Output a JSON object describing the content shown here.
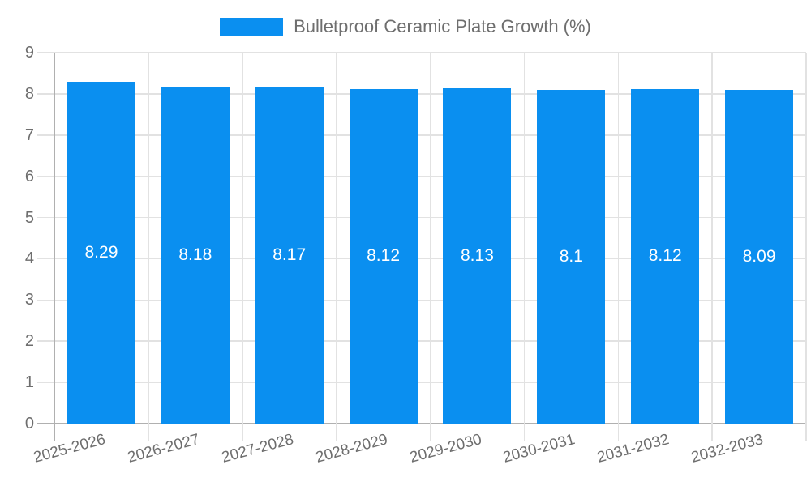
{
  "legend": {
    "label": "Bulletproof Ceramic Plate Growth (%)"
  },
  "chart_data": {
    "type": "bar",
    "title": "Bulletproof Ceramic Plate Growth (%)",
    "legend_entries": [
      "Bulletproof Ceramic Plate Growth (%)"
    ],
    "legend_position": "top",
    "categories": [
      "2025-2026",
      "2026-2027",
      "2027-2028",
      "2028-2029",
      "2029-2030",
      "2030-2031",
      "2031-2032",
      "2032-2033"
    ],
    "values": [
      8.29,
      8.18,
      8.17,
      8.12,
      8.13,
      8.1,
      8.12,
      8.09
    ],
    "value_labels": [
      "8.29",
      "8.18",
      "8.17",
      "8.12",
      "8.13",
      "8.1",
      "8.12",
      "8.09"
    ],
    "xlabel": "",
    "ylabel": "",
    "ylim": [
      0,
      9
    ],
    "yticks": [
      0,
      1,
      2,
      3,
      4,
      5,
      6,
      7,
      8,
      9
    ],
    "grid": true,
    "x_tick_rotation_deg": -15,
    "colors": {
      "bar": "#0a8ff0",
      "bar_value_text": "#ffffff",
      "axis_text": "#6e6e6e",
      "grid_line": "#e2e2e2",
      "axis_line": "#b0b0b0",
      "background": "#ffffff"
    }
  }
}
